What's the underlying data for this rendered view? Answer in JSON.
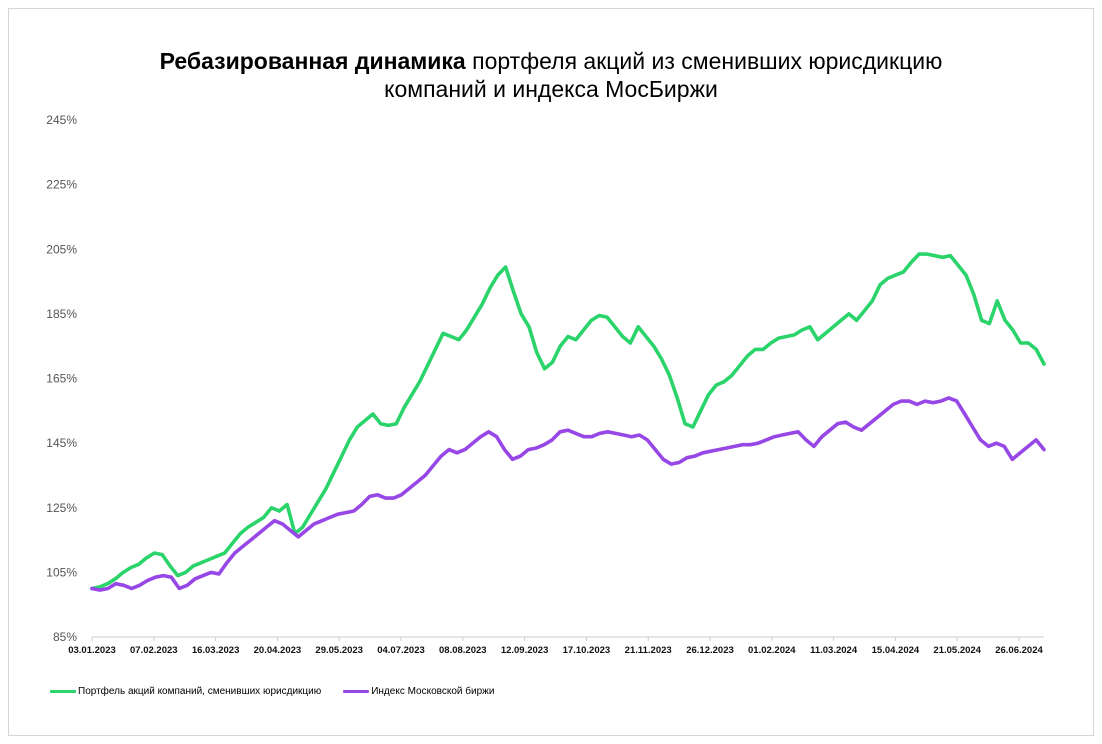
{
  "title": {
    "bold": "Ребазированная динамика",
    "rest": " портфеля акций из сменивших юрисдикцию",
    "line2": "компаний и индекса МосБиржи"
  },
  "legend": {
    "portfolio": "Портфель акций компаний, сменивших юрисдикцию",
    "index": "Индекс Московской биржи"
  },
  "colors": {
    "portfolio": "#2ad46a",
    "index": "#9747e6",
    "grid": "#e6e6e6",
    "axis": "#cccccc"
  },
  "chart_data": {
    "type": "line",
    "title": "Ребазированная динамика портфеля акций из сменивших юрисдикцию компаний и индекса МосБиржи",
    "xlabel": "",
    "ylabel": "",
    "y_ticks": [
      "85%",
      "105%",
      "125%",
      "145%",
      "165%",
      "185%",
      "205%",
      "225%",
      "245%"
    ],
    "ylim": [
      85,
      245
    ],
    "x_tick_labels": [
      "03.01.2023",
      "07.02.2023",
      "16.03.2023",
      "20.04.2023",
      "29.05.2023",
      "04.07.2023",
      "08.08.2023",
      "12.09.2023",
      "17.10.2023",
      "21.11.2023",
      "26.12.2023",
      "01.02.2024",
      "11.03.2024",
      "15.04.2024",
      "21.05.2024",
      "26.06.2024"
    ],
    "grid": false,
    "legend_position": "bottom-left",
    "series": [
      {
        "name": "Портфель акций компаний, сменивших юрисдикцию",
        "values": [
          100,
          100.5,
          101.5,
          103,
          105,
          106.5,
          107.5,
          109.5,
          111,
          110.5,
          107,
          104,
          105,
          107,
          108,
          109,
          110,
          111,
          114,
          117,
          119,
          120.5,
          122,
          125,
          124,
          126,
          117,
          119,
          123,
          127,
          131,
          136,
          141,
          146,
          150,
          152,
          154,
          151,
          150.5,
          151,
          156,
          160,
          164,
          169,
          174,
          179,
          178,
          177,
          180,
          184,
          188,
          193,
          197,
          199.5,
          192,
          185,
          181,
          173,
          168,
          170,
          175,
          178,
          177,
          180,
          183,
          184.5,
          184,
          181,
          178,
          176,
          181,
          178,
          175,
          171,
          166,
          159,
          151,
          150,
          155,
          160,
          163,
          164,
          166,
          169,
          172,
          174,
          174,
          176,
          177.5,
          178,
          178.5,
          180,
          181,
          177,
          179,
          181,
          183,
          185,
          183,
          186,
          189,
          194,
          196,
          197,
          198,
          201,
          203.5,
          203.5,
          203,
          202.5,
          203,
          200,
          197,
          191,
          183,
          182,
          189,
          183,
          180,
          176,
          176,
          174,
          169.5
        ]
      },
      {
        "name": "Индекс Московской биржи",
        "values": [
          100,
          99.5,
          100,
          101.5,
          101,
          100,
          101,
          102.5,
          103.5,
          104,
          103.5,
          100,
          101,
          103,
          104,
          105,
          104.5,
          108,
          111,
          113,
          115,
          117,
          119,
          121,
          120,
          118,
          116,
          118,
          120,
          121,
          122,
          123,
          123.5,
          124,
          126,
          128.5,
          129,
          128,
          128,
          129,
          131,
          133,
          135,
          138,
          141,
          143,
          142,
          143,
          145,
          147,
          148.5,
          147,
          143,
          140,
          141,
          143,
          143.5,
          144.5,
          146,
          148.5,
          149,
          148,
          147,
          147,
          148,
          148.5,
          148,
          147.5,
          147,
          147.5,
          146,
          143,
          140,
          138.5,
          139,
          140.5,
          141,
          142,
          142.5,
          143,
          143.5,
          144,
          144.5,
          144.5,
          145,
          146,
          147,
          147.5,
          148,
          148.5,
          146,
          144,
          147,
          149,
          151,
          151.5,
          150,
          149,
          151,
          153,
          155,
          157,
          158,
          158,
          157,
          158,
          157.5,
          158,
          159,
          158,
          154,
          150,
          146,
          144,
          145,
          144,
          140,
          142,
          144,
          146,
          143
        ]
      }
    ]
  }
}
